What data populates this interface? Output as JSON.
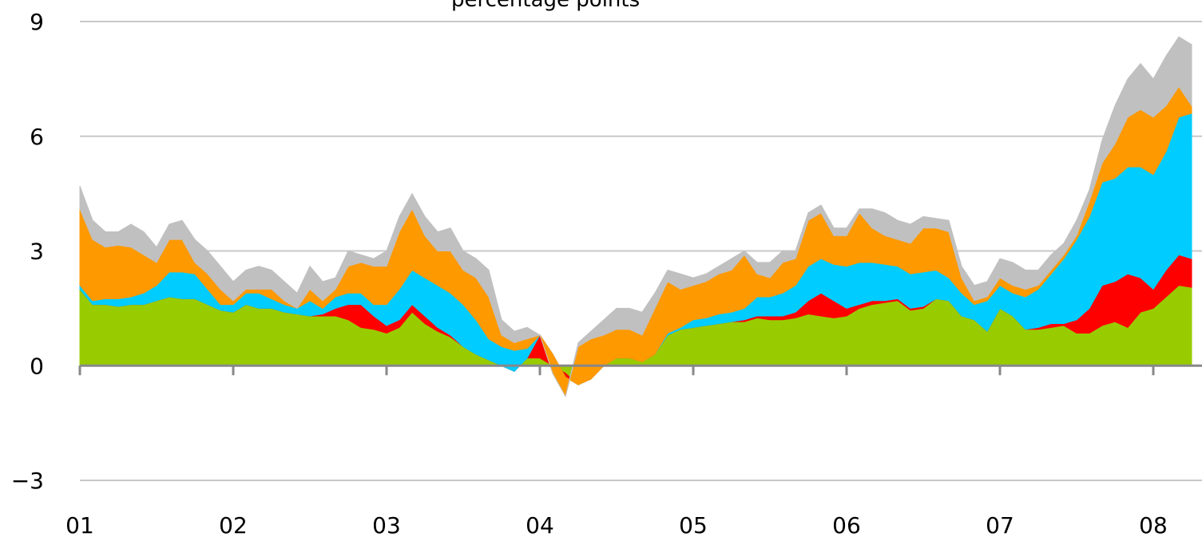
{
  "chart_data": {
    "type": "stacked-area",
    "title": "percentage points",
    "categories": [
      "01",
      null,
      null,
      null,
      null,
      null,
      null,
      null,
      null,
      null,
      null,
      null,
      "02",
      null,
      null,
      null,
      null,
      null,
      null,
      null,
      null,
      null,
      null,
      null,
      "03",
      null,
      null,
      null,
      null,
      null,
      null,
      null,
      null,
      null,
      null,
      null,
      "04",
      null,
      null,
      null,
      null,
      null,
      null,
      null,
      null,
      null,
      null,
      null,
      "05",
      null,
      null,
      null,
      null,
      null,
      null,
      null,
      null,
      null,
      null,
      null,
      "06",
      null,
      null,
      null,
      null,
      null,
      null,
      null,
      null,
      null,
      null,
      null,
      "07",
      null,
      null,
      null,
      null,
      null,
      null,
      null,
      null,
      null,
      null,
      null,
      "08",
      null,
      null,
      null
    ],
    "series": [
      {
        "color": "#99cc00",
        "values": [
          2.0,
          1.6,
          1.6,
          1.55,
          1.6,
          1.6,
          1.7,
          1.8,
          1.75,
          1.75,
          1.6,
          1.45,
          1.4,
          1.6,
          1.5,
          1.5,
          1.4,
          1.35,
          1.3,
          1.3,
          1.3,
          1.2,
          1.0,
          0.95,
          0.85,
          1.0,
          1.4,
          1.1,
          0.9,
          0.75,
          0.5,
          0.3,
          0.15,
          0,
          -0.15,
          0.2,
          0.2,
          0,
          -0.2,
          -0.5,
          -0.35,
          0,
          0.2,
          0.2,
          0.1,
          0.3,
          0.8,
          0.95,
          1.0,
          1.05,
          1.1,
          1.15,
          1.15,
          1.25,
          1.2,
          1.2,
          1.25,
          1.35,
          1.3,
          1.25,
          1.3,
          1.5,
          1.6,
          1.65,
          1.7,
          1.45,
          1.5,
          1.75,
          1.7,
          1.3,
          1.2,
          0.9,
          1.5,
          1.3,
          0.95,
          0.95,
          1.0,
          1.05,
          0.85,
          0.85,
          1.05,
          1.15,
          1.0,
          1.4,
          1.5,
          1.8,
          2.1,
          2.05
        ]
      },
      {
        "color": "#ff0000",
        "values": [
          0,
          0,
          0,
          0,
          0,
          0,
          0,
          0,
          0,
          0,
          0,
          0,
          0,
          0,
          0,
          0,
          0,
          0,
          0,
          0.05,
          0.2,
          0.4,
          0.6,
          0.35,
          0.2,
          0.2,
          0.2,
          0.2,
          0.1,
          0.05,
          0,
          0,
          0,
          0,
          0,
          0,
          0.6,
          0.3,
          -0.1,
          0,
          0,
          0,
          0,
          0,
          0,
          0,
          0,
          0,
          0,
          0,
          0,
          0,
          0.05,
          0.05,
          0.1,
          0.1,
          0.15,
          0.35,
          0.6,
          0.45,
          0.2,
          0.1,
          0.1,
          0.05,
          0.05,
          0.05,
          0.05,
          0,
          0,
          0,
          0,
          0,
          0,
          0,
          0,
          0.05,
          0.1,
          0.05,
          0.35,
          0.65,
          1.05,
          1.05,
          1.4,
          0.9,
          0.5,
          0.7,
          0.8,
          0.75
        ]
      },
      {
        "color": "#00ccff",
        "values": [
          0.1,
          0.1,
          0.15,
          0.2,
          0.2,
          0.3,
          0.4,
          0.65,
          0.7,
          0.65,
          0.4,
          0.15,
          0.2,
          0.3,
          0.4,
          0.25,
          0.2,
          0.15,
          0.4,
          0.15,
          0.3,
          0.3,
          0.3,
          0.3,
          0.55,
          0.8,
          0.9,
          1.0,
          1.1,
          1.1,
          1.1,
          0.9,
          0.55,
          0.5,
          0.55,
          0.25,
          0,
          0,
          0,
          0,
          0,
          0,
          0,
          0,
          0,
          0,
          0.05,
          0.05,
          0.2,
          0.2,
          0.25,
          0.25,
          0.3,
          0.5,
          0.5,
          0.6,
          0.7,
          0.9,
          0.9,
          0.95,
          1.1,
          1.1,
          1.0,
          0.95,
          0.85,
          0.9,
          0.9,
          0.75,
          0.6,
          0.6,
          0.4,
          0.8,
          0.6,
          0.6,
          0.85,
          1.0,
          1.3,
          1.7,
          2.1,
          2.4,
          2.7,
          2.7,
          2.8,
          2.9,
          3.0,
          3.1,
          3.6,
          3.8
        ]
      },
      {
        "color": "#ff9900",
        "values": [
          2.0,
          1.6,
          1.35,
          1.4,
          1.3,
          1.0,
          0.6,
          0.85,
          0.85,
          0.3,
          0.4,
          0.4,
          0.1,
          0.1,
          0.1,
          0.25,
          0.1,
          0,
          0.3,
          0.2,
          0.2,
          0.7,
          0.8,
          1.0,
          1.0,
          1.5,
          1.6,
          1.1,
          0.9,
          1.1,
          0.9,
          1.1,
          1.1,
          0.3,
          0.2,
          0.25,
          0,
          -0.5,
          -0.5,
          1.0,
          1.05,
          0.8,
          0.75,
          0.75,
          0.7,
          1.2,
          1.35,
          1.0,
          0.9,
          0.95,
          1.05,
          1.1,
          1.4,
          0.6,
          0.5,
          0.8,
          0.7,
          1.2,
          1.2,
          0.75,
          0.8,
          1.3,
          0.9,
          0.75,
          0.7,
          0.8,
          1.15,
          1.1,
          1.2,
          0.4,
          0.1,
          0.1,
          0.2,
          0.2,
          0.2,
          0.1,
          0.1,
          0.1,
          0.1,
          0.4,
          0.5,
          0.9,
          1.3,
          1.5,
          1.5,
          1.2,
          0.8,
          0.2
        ]
      },
      {
        "color": "#c0c0c0",
        "values": [
          0.6,
          0.5,
          0.4,
          0.35,
          0.6,
          0.6,
          0.4,
          0.4,
          0.5,
          0.6,
          0.6,
          0.6,
          0.5,
          0.5,
          0.6,
          0.5,
          0.5,
          0.4,
          0.6,
          0.5,
          0.3,
          0.4,
          0.2,
          0.2,
          0.4,
          0.4,
          0.4,
          0.5,
          0.5,
          0.6,
          0.5,
          0.5,
          0.7,
          0.4,
          0.3,
          0.3,
          0,
          0,
          0,
          0.1,
          0.2,
          0.4,
          0.55,
          0.55,
          0.6,
          0.4,
          0.3,
          0.4,
          0.2,
          0.2,
          0.2,
          0.3,
          0.1,
          0.3,
          0.4,
          0.3,
          0.2,
          0.2,
          0.2,
          0.2,
          0.2,
          0.1,
          0.5,
          0.6,
          0.5,
          0.5,
          0.3,
          0.25,
          0.3,
          0.3,
          0.4,
          0.4,
          0.5,
          0.6,
          0.5,
          0.4,
          0.4,
          0.3,
          0.4,
          0.3,
          0.6,
          1.0,
          1.0,
          1.2,
          1.0,
          1.3,
          1.3,
          1.6
        ]
      }
    ],
    "ylim": [
      -3,
      9
    ],
    "yticks": [
      {
        "value": -3,
        "label": "−3"
      },
      0,
      3,
      6,
      9
    ],
    "grid": true
  }
}
